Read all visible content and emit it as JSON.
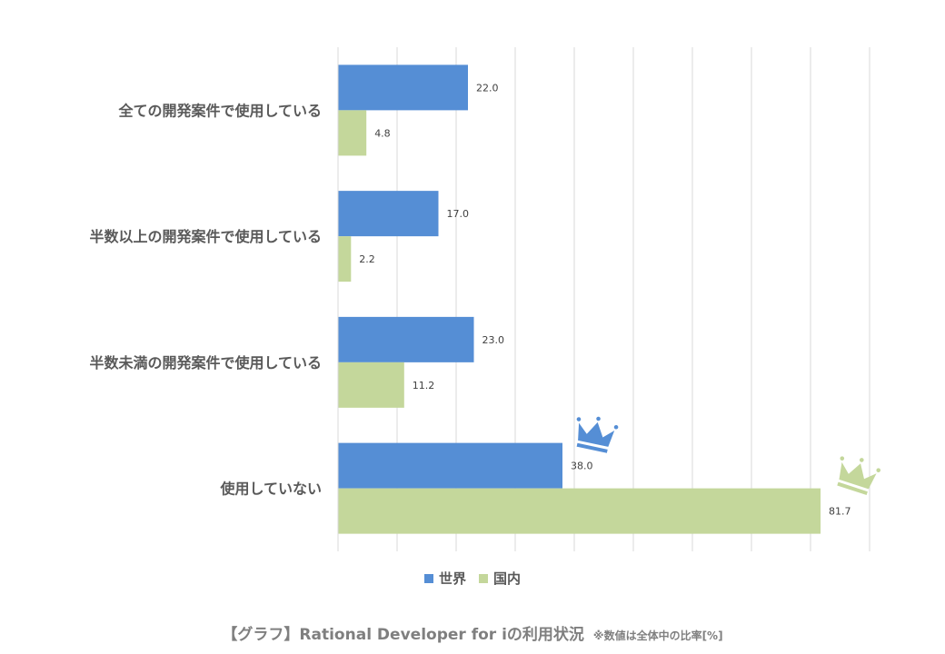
{
  "chart_data": {
    "type": "bar",
    "orientation": "horizontal",
    "categories": [
      "全ての開発案件で使用している",
      "半数以上の開発案件で使用している",
      "半数未満の開発案件で使用している",
      "使用していない"
    ],
    "series": [
      {
        "name": "世界",
        "values": [
          22.0,
          17.0,
          23.0,
          38.0
        ],
        "color": "#558ed5"
      },
      {
        "name": "国内",
        "values": [
          4.8,
          2.2,
          11.2,
          81.7
        ],
        "color": "#c4d79b"
      }
    ],
    "value_labels": [
      [
        "22.0",
        "17.0",
        "23.0",
        "38.0"
      ],
      [
        "4.8",
        "2.2",
        "11.2",
        "81.7"
      ]
    ],
    "xlim": [
      0,
      90
    ],
    "grid": true,
    "legend_position": "bottom",
    "crown_icons": [
      "crown-icon-world",
      "crown-icon-domestic"
    ]
  },
  "legend": {
    "items": [
      {
        "label": "世界",
        "color": "#558ed5"
      },
      {
        "label": "国内",
        "color": "#c4d79b"
      }
    ]
  },
  "caption": {
    "main": "【グラフ】Rational Developer for iの利用状況",
    "note": "※数値は全体中の比率[%]"
  }
}
